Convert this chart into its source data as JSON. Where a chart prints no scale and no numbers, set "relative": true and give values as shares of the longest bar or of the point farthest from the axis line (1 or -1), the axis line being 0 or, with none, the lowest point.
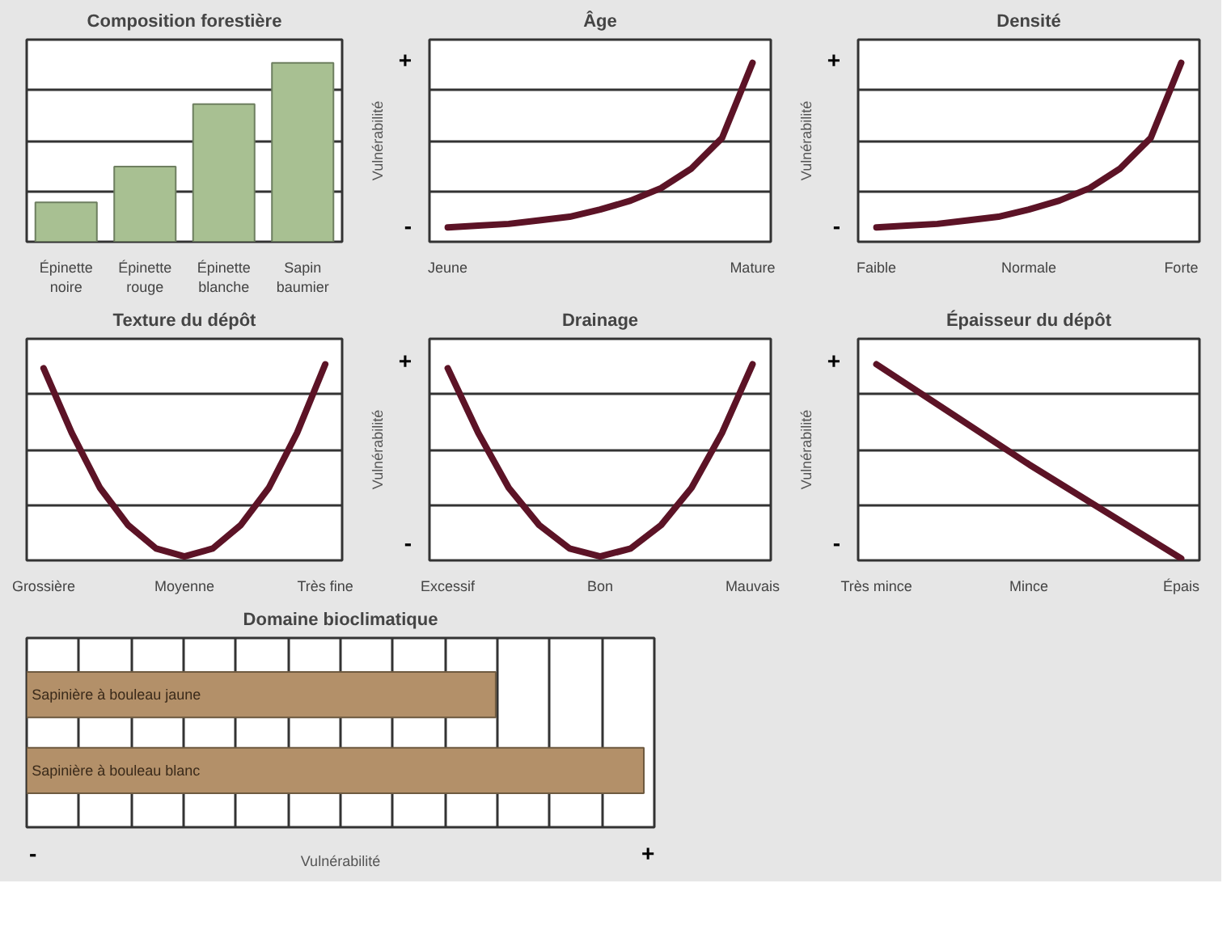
{
  "chart_data": [
    {
      "type": "bar",
      "title": "Composition forestière",
      "categories": [
        "Épinette noire",
        "Épinette rouge",
        "Épinette blanche",
        "Sapin baumier"
      ],
      "values": [
        0.22,
        0.42,
        0.77,
        1.0
      ],
      "color": "#a8c092",
      "relative": true,
      "grid": "y"
    },
    {
      "type": "line",
      "title": "Âge",
      "ylabel": "Vulnérabilité",
      "annotations": [
        "+",
        "-"
      ],
      "categories": [
        "Jeune",
        null,
        null,
        null,
        null,
        null,
        null,
        null,
        null,
        null,
        "Mature"
      ],
      "values": [
        0.08,
        0.09,
        0.1,
        0.12,
        0.14,
        0.18,
        0.23,
        0.3,
        0.41,
        0.58,
        1.0
      ],
      "color": "#5c1326",
      "relative": true,
      "grid": "y"
    },
    {
      "type": "line",
      "title": "Densité",
      "ylabel": "Vulnérabilité",
      "annotations": [
        "+",
        "-"
      ],
      "categories": [
        "Faible",
        null,
        null,
        null,
        null,
        "Normale",
        null,
        null,
        null,
        null,
        "Forte"
      ],
      "values": [
        0.08,
        0.09,
        0.1,
        0.12,
        0.14,
        0.18,
        0.23,
        0.3,
        0.41,
        0.58,
        1.0
      ],
      "color": "#5c1326",
      "relative": true,
      "grid": "y"
    },
    {
      "type": "line",
      "title": "Texture du dépôt",
      "categories": [
        "Grossière",
        null,
        null,
        null,
        null,
        "Moyenne",
        null,
        null,
        null,
        null,
        "Très fine"
      ],
      "values": [
        0.98,
        0.65,
        0.37,
        0.18,
        0.06,
        0.02,
        0.06,
        0.18,
        0.37,
        0.65,
        1.0
      ],
      "color": "#5c1326",
      "relative": true,
      "grid": "y"
    },
    {
      "type": "line",
      "title": "Drainage",
      "ylabel": "Vulnérabilité",
      "annotations": [
        "+",
        "-"
      ],
      "categories": [
        "Excessif",
        null,
        null,
        null,
        null,
        "Bon",
        null,
        null,
        null,
        null,
        "Mauvais"
      ],
      "values": [
        0.98,
        0.65,
        0.37,
        0.18,
        0.06,
        0.02,
        0.06,
        0.18,
        0.37,
        0.65,
        1.0
      ],
      "color": "#5c1326",
      "relative": true,
      "grid": "y"
    },
    {
      "type": "line",
      "title": "Épaisseur du dépôt",
      "ylabel": "Vulnérabilité",
      "annotations": [
        "+",
        "-"
      ],
      "categories": [
        "Très mince",
        "Mince",
        "Épais"
      ],
      "values": [
        1.0,
        0.49,
        0.01
      ],
      "color": "#5c1326",
      "relative": true,
      "grid": "y"
    },
    {
      "type": "bar",
      "orientation": "horizontal",
      "title": "Domaine bioclimatique",
      "xlabel": "Vulnérabilité",
      "annotations": [
        "-",
        "+"
      ],
      "categories": [
        "Sapinière à bouleau jaune",
        "Sapinière à bouleau blanc"
      ],
      "values": [
        0.76,
        1.0
      ],
      "color": "#b39069",
      "relative": true,
      "grid": "x"
    }
  ]
}
